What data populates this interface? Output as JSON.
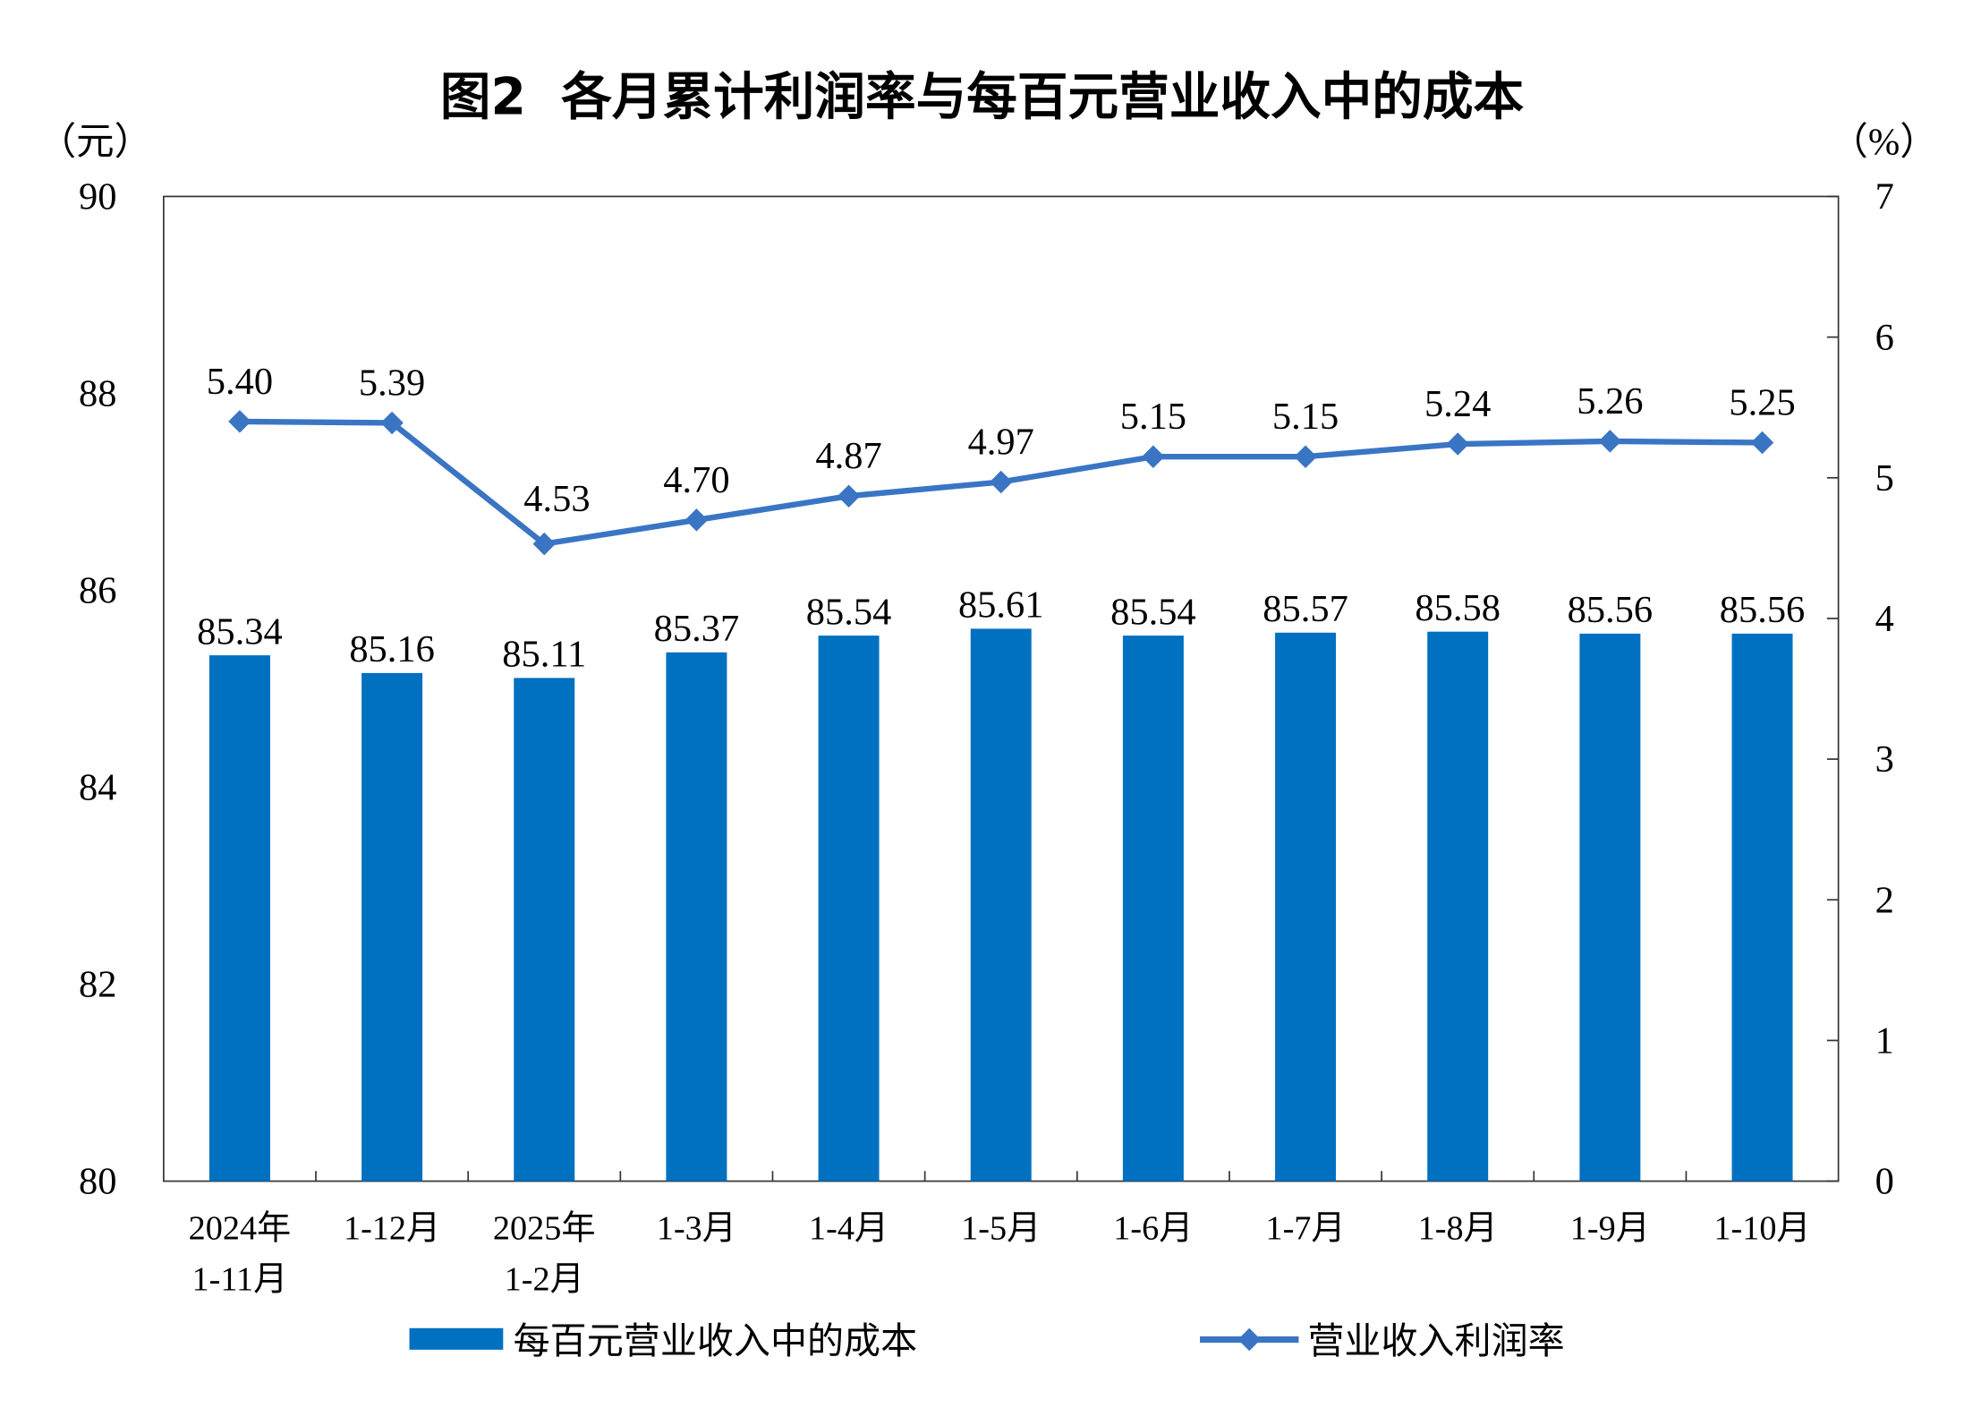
{
  "chart_data": {
    "type": "bar+line",
    "title": "图2  各月累计利润率与每百元营业收入中的成本",
    "categories": [
      "2024年\n1-11月",
      "1-12月",
      "2025年\n1-2月",
      "1-3月",
      "1-4月",
      "1-5月",
      "1-6月",
      "1-7月",
      "1-8月",
      "1-9月",
      "1-10月"
    ],
    "left_axis": {
      "unit": "（元）",
      "range": [
        80,
        90
      ],
      "ticks": [
        80,
        82,
        84,
        86,
        88,
        90
      ]
    },
    "right_axis": {
      "unit": "（%）",
      "range": [
        0,
        7
      ],
      "ticks": [
        0,
        1,
        2,
        3,
        4,
        5,
        6,
        7
      ]
    },
    "series": [
      {
        "name": "每百元营业收入中的成本",
        "kind": "bar",
        "axis": "left",
        "color": "#0070C0",
        "values": [
          85.34,
          85.16,
          85.11,
          85.37,
          85.54,
          85.61,
          85.54,
          85.57,
          85.58,
          85.56,
          85.56
        ],
        "labels": [
          "85.34",
          "85.16",
          "85.11",
          "85.37",
          "85.54",
          "85.61",
          "85.54",
          "85.57",
          "85.58",
          "85.56",
          "85.56"
        ]
      },
      {
        "name": "营业收入利润率",
        "kind": "line",
        "axis": "right",
        "color": "#3A75C4",
        "marker": "diamond",
        "values": [
          5.4,
          5.39,
          4.53,
          4.7,
          4.87,
          4.97,
          5.15,
          5.15,
          5.24,
          5.26,
          5.25
        ],
        "labels": [
          "5.40",
          "5.39",
          "4.53",
          "4.70",
          "4.87",
          "4.97",
          "5.15",
          "5.15",
          "5.24",
          "5.26",
          "5.25"
        ]
      }
    ],
    "legend": "bottom",
    "grid": false
  }
}
